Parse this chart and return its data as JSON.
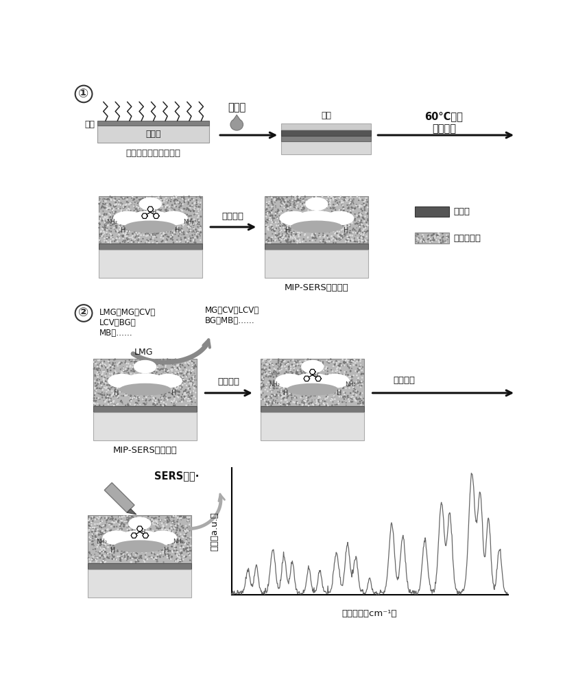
{
  "section1_label": "①",
  "section2_label": "②",
  "text_prejuye": "预聚液",
  "text_gaipian": "盖片",
  "text_60c": "60°C聚合\n除去盖片",
  "text_jinmo": "金膜",
  "text_zaibopian": "载玻片",
  "text_jiezhi": "接枝引发剂的镀金玻片",
  "text_mubanjietuo": "模板洗脱",
  "text_mipsers": "MIP-SERS传感芯片",
  "text_mipsers2": "MIP-SERS传感芯片",
  "text_legend1": "预聚液",
  "text_legend2": "分子印迹膜",
  "text_lmg_left": "LMG、MG、CV、\nLCV、BG、\nMB、……",
  "text_mg_right": "MG、CV、LCV、\nBG、MB、……",
  "text_lmg": "LMG",
  "text_xuanze": "选择识别",
  "text_yuanwei": "原位氧化",
  "text_sers": "SERS信号·",
  "text_qiangdu": "强度（a.u.）",
  "text_raman": "拉曼位移（cm⁻¹）",
  "bg_color": "#ffffff"
}
